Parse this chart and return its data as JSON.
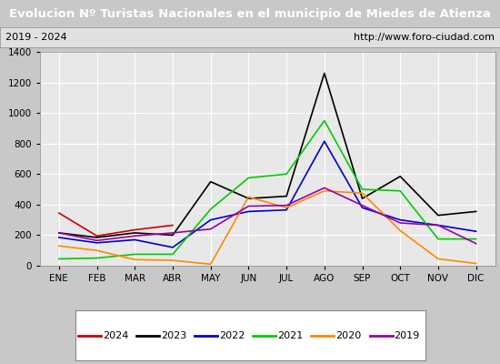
{
  "title": "Evolucion Nº Turistas Nacionales en el municipio de Miedes de Atienza",
  "subtitle_left": "2019 - 2024",
  "subtitle_right": "http://www.foro-ciudad.com",
  "x_labels": [
    "ENE",
    "FEB",
    "MAR",
    "ABR",
    "MAY",
    "JUN",
    "JUL",
    "AGO",
    "SEP",
    "OCT",
    "NOV",
    "DIC"
  ],
  "ylim": [
    0,
    1400
  ],
  "yticks": [
    0,
    200,
    400,
    600,
    800,
    1000,
    1200,
    1400
  ],
  "series": {
    "2024": {
      "color": "#cc0000",
      "data": [
        345,
        195,
        235,
        265,
        null,
        null,
        null,
        null,
        null,
        null,
        null,
        null
      ]
    },
    "2023": {
      "color": "#000000",
      "data": [
        215,
        185,
        215,
        200,
        550,
        440,
        455,
        1260,
        440,
        585,
        330,
        355
      ]
    },
    "2022": {
      "color": "#0000cc",
      "data": [
        185,
        150,
        170,
        120,
        300,
        355,
        365,
        815,
        380,
        300,
        265,
        225
      ]
    },
    "2021": {
      "color": "#00cc00",
      "data": [
        45,
        50,
        75,
        75,
        370,
        575,
        600,
        950,
        500,
        490,
        175,
        175
      ]
    },
    "2020": {
      "color": "#ff8800",
      "data": [
        130,
        100,
        40,
        35,
        10,
        450,
        380,
        490,
        475,
        230,
        45,
        15
      ]
    },
    "2019": {
      "color": "#9900aa",
      "data": [
        215,
        165,
        195,
        215,
        240,
        390,
        395,
        510,
        395,
        280,
        265,
        145
      ]
    }
  },
  "title_bg_color": "#3d6fc9",
  "title_text_color": "#ffffff",
  "subtitle_bg_color": "#e0e0e0",
  "plot_bg_color": "#e8e8e8",
  "outer_bg_color": "#c8c8c8",
  "grid_color": "#ffffff",
  "legend_order": [
    "2024",
    "2023",
    "2022",
    "2021",
    "2020",
    "2019"
  ]
}
